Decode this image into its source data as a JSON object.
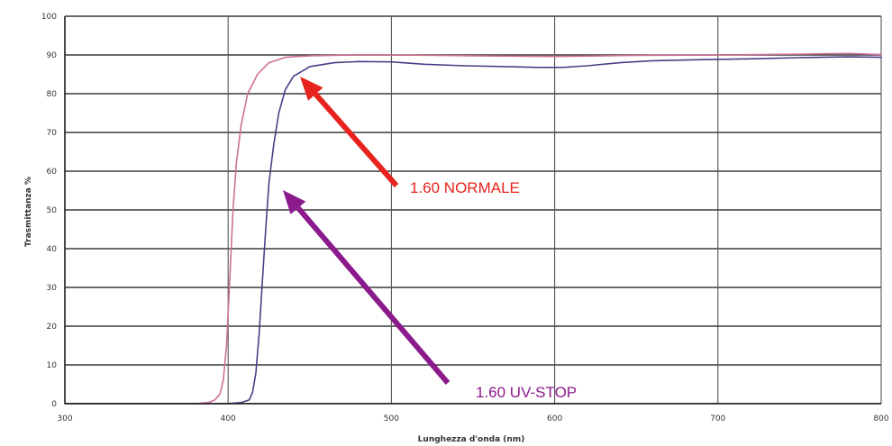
{
  "chart_data": {
    "type": "line",
    "title": "",
    "xlabel": "Lunghezza d'onda (nm)",
    "ylabel": "Trasmittanza %",
    "xlim": [
      300,
      800
    ],
    "ylim": [
      0,
      100
    ],
    "x_ticks": [
      300,
      400,
      500,
      600,
      700,
      800
    ],
    "y_ticks": [
      0,
      10,
      20,
      30,
      40,
      50,
      60,
      70,
      80,
      90,
      100
    ],
    "grid": true,
    "legend": "none",
    "series": [
      {
        "name": "1.60 NORMALE",
        "color": "#cc6f9a",
        "points": [
          [
            300,
            0
          ],
          [
            380,
            0
          ],
          [
            388,
            0.3
          ],
          [
            392,
            1
          ],
          [
            395,
            2.5
          ],
          [
            397,
            6
          ],
          [
            399,
            15
          ],
          [
            401,
            32
          ],
          [
            403,
            50
          ],
          [
            405,
            62
          ],
          [
            408,
            72
          ],
          [
            412,
            80
          ],
          [
            418,
            85
          ],
          [
            425,
            88
          ],
          [
            435,
            89.4
          ],
          [
            450,
            89.8
          ],
          [
            475,
            90
          ],
          [
            500,
            90
          ],
          [
            550,
            89.8
          ],
          [
            600,
            89.6
          ],
          [
            650,
            89.9
          ],
          [
            700,
            90
          ],
          [
            750,
            90.2
          ],
          [
            780,
            90.4
          ],
          [
            800,
            90.1
          ]
        ]
      },
      {
        "name": "1.60 UV-STOP",
        "color": "#4c3e86",
        "points": [
          [
            300,
            0
          ],
          [
            400,
            0
          ],
          [
            408,
            0.3
          ],
          [
            413,
            1
          ],
          [
            415,
            3
          ],
          [
            417,
            8
          ],
          [
            419,
            18
          ],
          [
            421,
            32
          ],
          [
            423,
            45
          ],
          [
            425,
            57
          ],
          [
            428,
            67
          ],
          [
            431,
            75
          ],
          [
            435,
            81
          ],
          [
            440,
            84.5
          ],
          [
            450,
            87
          ],
          [
            465,
            88
          ],
          [
            480,
            88.3
          ],
          [
            500,
            88.2
          ],
          [
            520,
            87.6
          ],
          [
            545,
            87.2
          ],
          [
            570,
            87
          ],
          [
            590,
            86.8
          ],
          [
            605,
            86.8
          ],
          [
            620,
            87.2
          ],
          [
            640,
            88
          ],
          [
            660,
            88.5
          ],
          [
            690,
            88.8
          ],
          [
            720,
            89
          ],
          [
            750,
            89.3
          ],
          [
            780,
            89.5
          ],
          [
            800,
            89.4
          ]
        ]
      }
    ],
    "annotations": [
      {
        "text": "1.60 NORMALE",
        "color": "#e8231d"
      },
      {
        "text": "1.60 UV-STOP",
        "color": "#8b1a8d"
      }
    ]
  }
}
